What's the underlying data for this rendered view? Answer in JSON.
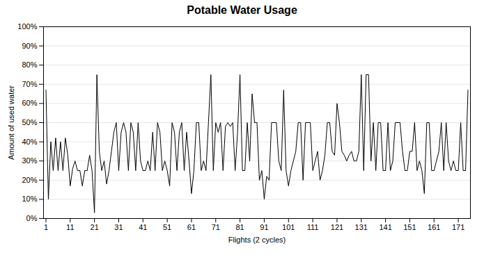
{
  "chart_data": {
    "type": "line",
    "title": "Potable Water Usage",
    "xlabel": "Flights (2 cycles)",
    "ylabel": "Amount of used water",
    "color": "#000000",
    "grid": true,
    "xlim": [
      0,
      176
    ],
    "ylim": [
      0,
      1.0
    ],
    "xticks": [
      1,
      11,
      21,
      31,
      41,
      51,
      61,
      71,
      81,
      91,
      101,
      111,
      121,
      131,
      141,
      151,
      161,
      171
    ],
    "yticks": [
      {
        "value": 0,
        "label": "0%"
      },
      {
        "value": 0.1,
        "label": "10%"
      },
      {
        "value": 0.2,
        "label": "20%"
      },
      {
        "value": 0.3,
        "label": "30%"
      },
      {
        "value": 0.4,
        "label": "40%"
      },
      {
        "value": 0.5,
        "label": "50%"
      },
      {
        "value": 0.6,
        "label": "60%"
      },
      {
        "value": 0.7,
        "label": "70%"
      },
      {
        "value": 0.8,
        "label": "80%"
      },
      {
        "value": 0.9,
        "label": "90%"
      },
      {
        "value": 1.0,
        "label": "100%"
      }
    ],
    "x": [
      1,
      2,
      3,
      4,
      5,
      6,
      7,
      8,
      9,
      10,
      11,
      12,
      13,
      14,
      15,
      16,
      17,
      18,
      19,
      20,
      21,
      22,
      23,
      24,
      25,
      26,
      27,
      28,
      29,
      30,
      31,
      32,
      33,
      34,
      35,
      36,
      37,
      38,
      39,
      40,
      41,
      42,
      43,
      44,
      45,
      46,
      47,
      48,
      49,
      50,
      51,
      52,
      53,
      54,
      55,
      56,
      57,
      58,
      59,
      60,
      61,
      62,
      63,
      64,
      65,
      66,
      67,
      68,
      69,
      70,
      71,
      72,
      73,
      74,
      75,
      76,
      77,
      78,
      79,
      80,
      81,
      82,
      83,
      84,
      85,
      86,
      87,
      88,
      89,
      90,
      91,
      92,
      93,
      94,
      95,
      96,
      97,
      98,
      99,
      100,
      101,
      102,
      103,
      104,
      105,
      106,
      107,
      108,
      109,
      110,
      111,
      112,
      113,
      114,
      115,
      116,
      117,
      118,
      119,
      120,
      121,
      122,
      123,
      124,
      125,
      126,
      127,
      128,
      129,
      130,
      131,
      132,
      133,
      134,
      135,
      136,
      137,
      138,
      139,
      140,
      141,
      142,
      143,
      144,
      145,
      146,
      147,
      148,
      149,
      150,
      151,
      152,
      153,
      154,
      155,
      156,
      157,
      158,
      159,
      160,
      161,
      162,
      163,
      164,
      165,
      166,
      167,
      168,
      169,
      170,
      171,
      172,
      173,
      174,
      175
    ],
    "values": [
      0.67,
      0.1,
      0.4,
      0.25,
      0.42,
      0.25,
      0.4,
      0.25,
      0.42,
      0.33,
      0.17,
      0.26,
      0.3,
      0.25,
      0.25,
      0.17,
      0.25,
      0.25,
      0.33,
      0.25,
      0.03,
      0.75,
      0.35,
      0.25,
      0.3,
      0.18,
      0.25,
      0.35,
      0.45,
      0.5,
      0.25,
      0.45,
      0.5,
      0.45,
      0.25,
      0.5,
      0.45,
      0.25,
      0.5,
      0.3,
      0.25,
      0.25,
      0.3,
      0.25,
      0.45,
      0.25,
      0.5,
      0.45,
      0.25,
      0.3,
      0.25,
      0.17,
      0.5,
      0.45,
      0.25,
      0.45,
      0.5,
      0.25,
      0.45,
      0.3,
      0.13,
      0.25,
      0.5,
      0.5,
      0.25,
      0.3,
      0.25,
      0.5,
      0.75,
      0.25,
      0.5,
      0.45,
      0.5,
      0.25,
      0.48,
      0.5,
      0.48,
      0.5,
      0.25,
      0.45,
      0.75,
      0.25,
      0.25,
      0.5,
      0.3,
      0.65,
      0.5,
      0.5,
      0.2,
      0.25,
      0.1,
      0.22,
      0.2,
      0.5,
      0.5,
      0.5,
      0.3,
      0.25,
      0.67,
      0.25,
      0.17,
      0.25,
      0.3,
      0.35,
      0.5,
      0.5,
      0.2,
      0.5,
      0.5,
      0.5,
      0.25,
      0.3,
      0.35,
      0.2,
      0.25,
      0.33,
      0.5,
      0.5,
      0.35,
      0.33,
      0.6,
      0.5,
      0.35,
      0.33,
      0.3,
      0.33,
      0.35,
      0.3,
      0.3,
      0.35,
      0.75,
      0.25,
      0.75,
      0.75,
      0.3,
      0.5,
      0.25,
      0.5,
      0.5,
      0.25,
      0.25,
      0.5,
      0.25,
      0.3,
      0.5,
      0.5,
      0.5,
      0.35,
      0.25,
      0.25,
      0.35,
      0.35,
      0.5,
      0.25,
      0.3,
      0.25,
      0.13,
      0.5,
      0.5,
      0.25,
      0.25,
      0.3,
      0.35,
      0.5,
      0.25,
      0.5,
      0.3,
      0.25,
      0.3,
      0.25,
      0.25,
      0.5,
      0.25,
      0.25,
      0.67
    ]
  }
}
